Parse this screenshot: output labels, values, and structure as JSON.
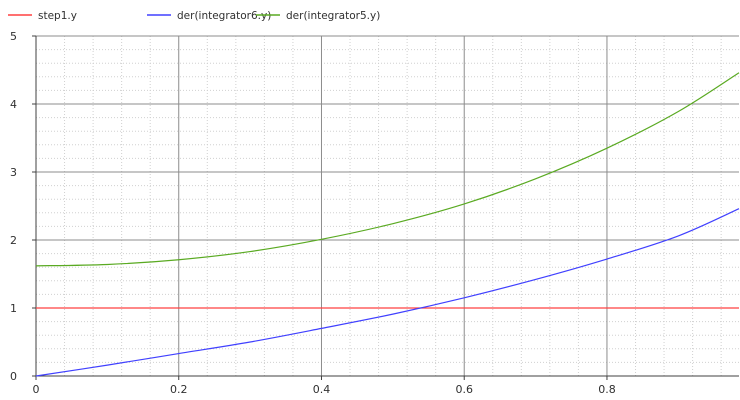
{
  "chart_data": {
    "type": "line",
    "title": "",
    "xlabel": "",
    "ylabel": "",
    "xlim": [
      0,
      0.985
    ],
    "ylim": [
      0,
      5
    ],
    "x_ticks": [
      0,
      0.2,
      0.4,
      0.6,
      0.8
    ],
    "x_tick_labels": [
      "0",
      "0.2",
      "0.4",
      "0.6",
      "0.8"
    ],
    "y_ticks": [
      0,
      1,
      2,
      3,
      4,
      5
    ],
    "y_tick_labels": [
      "0",
      "1",
      "2",
      "3",
      "4",
      "5"
    ],
    "grid": true,
    "legend_position": "top-left",
    "series": [
      {
        "name": "step1.y",
        "color": "#ff4040",
        "x": [
          0,
          0.1,
          0.2,
          0.3,
          0.4,
          0.5,
          0.6,
          0.7,
          0.8,
          0.9,
          0.985
        ],
        "y": [
          1,
          1,
          1,
          1,
          1,
          1,
          1,
          1,
          1,
          1,
          1
        ]
      },
      {
        "name": "der(integrator6.y)",
        "color": "#4040ff",
        "x": [
          0,
          0.1,
          0.2,
          0.3,
          0.4,
          0.5,
          0.6,
          0.7,
          0.8,
          0.9,
          0.985
        ],
        "y": [
          0,
          0.16,
          0.33,
          0.5,
          0.7,
          0.91,
          1.15,
          1.42,
          1.72,
          2.06,
          2.46
        ]
      },
      {
        "name": "der(integrator5.y)",
        "color": "#5aaa22",
        "x": [
          0,
          0.1,
          0.2,
          0.3,
          0.4,
          0.5,
          0.6,
          0.7,
          0.8,
          0.9,
          0.985
        ],
        "y": [
          1.62,
          1.64,
          1.71,
          1.83,
          2.01,
          2.24,
          2.53,
          2.9,
          3.35,
          3.89,
          4.46
        ]
      }
    ]
  }
}
